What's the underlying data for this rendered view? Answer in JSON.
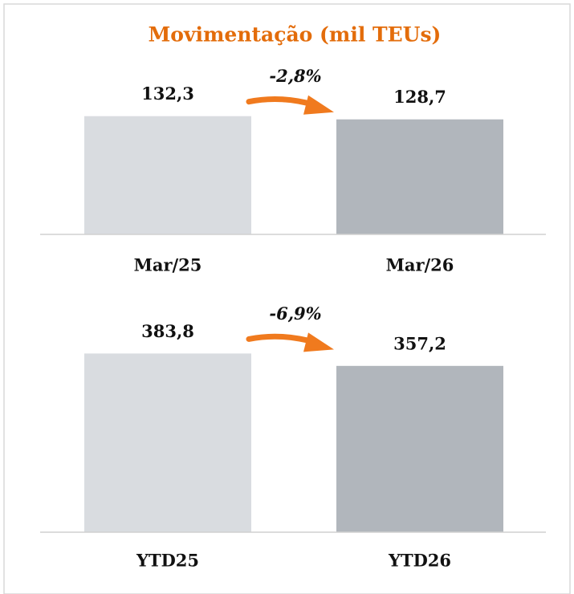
{
  "title": "Movimentação (mil TEUs)",
  "chart_data": [
    {
      "type": "bar",
      "categories": [
        "Mar/25",
        "Mar/26"
      ],
      "values": [
        132.3,
        128.7
      ],
      "value_labels": [
        "132,3",
        "128,7"
      ],
      "colors": [
        "#d9dce0",
        "#b1b6bc"
      ],
      "annotation": "-2,8%",
      "annotation_color": "#f07a1e",
      "ylim": [
        0,
        150
      ]
    },
    {
      "type": "bar",
      "categories": [
        "YTD25",
        "YTD26"
      ],
      "values": [
        383.8,
        357.2
      ],
      "value_labels": [
        "383,8",
        "357,2"
      ],
      "colors": [
        "#d9dce0",
        "#b1b6bc"
      ],
      "annotation": "-6,9%",
      "annotation_color": "#f07a1e",
      "ylim": [
        0,
        450
      ]
    }
  ]
}
